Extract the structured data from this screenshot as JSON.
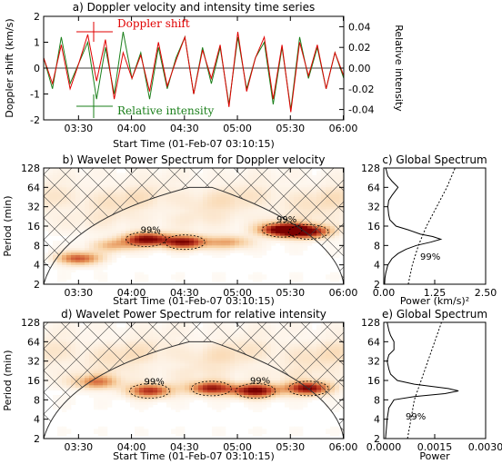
{
  "start_note": "Start Time (01-Feb-07 03:10:15)",
  "x_ticks": [
    "03:30",
    "04:00",
    "04:30",
    "05:00",
    "05:30",
    "06:00"
  ],
  "colors": {
    "doppler": "#e00000",
    "intensity": "#1a7f1a",
    "wavelet_low": "#fbe7d2",
    "wavelet_high": "#7a0000"
  },
  "chart_data": [
    {
      "type": "line",
      "title": "a) Doppler velocity and intensity time series",
      "xlabel": "Start Time (01-Feb-07 03:10:15)",
      "ylabel": "Doppler shift (km/s)",
      "y2label": "Relative intensity",
      "ylim": [
        -2,
        2
      ],
      "y2lim": [
        -0.05,
        0.05
      ],
      "yticks": [
        "-2",
        "-1",
        "0",
        "1",
        "2"
      ],
      "y2ticks": [
        "-0.04",
        "-0.02",
        "0.00",
        "0.02",
        "0.04"
      ],
      "x_range_minutes": [
        0,
        170
      ],
      "legend": [
        "Doppler shift",
        "Relative intensity"
      ],
      "series": [
        {
          "name": "Doppler shift",
          "color": "#e00000",
          "x": [
            0,
            5,
            10,
            15,
            20,
            25,
            30,
            35,
            40,
            45,
            50,
            55,
            60,
            65,
            70,
            75,
            80,
            85,
            90,
            95,
            100,
            105,
            110,
            115,
            120,
            125,
            130,
            135,
            140,
            145,
            150,
            155,
            160,
            165,
            170
          ],
          "values": [
            0.4,
            -0.6,
            0.9,
            -0.8,
            0.2,
            1.3,
            -0.5,
            1.1,
            -1.2,
            0.6,
            -0.4,
            0.5,
            -0.9,
            1.0,
            -0.7,
            0.3,
            1.2,
            -1.0,
            0.7,
            -0.4,
            0.9,
            -1.5,
            1.4,
            -0.9,
            0.4,
            1.2,
            -1.2,
            0.9,
            -1.7,
            1.0,
            -0.3,
            0.9,
            -0.8,
            0.6,
            -0.3
          ]
        },
        {
          "name": "Relative intensity",
          "color": "#1a7f1a",
          "x": [
            0,
            5,
            10,
            15,
            20,
            25,
            30,
            35,
            40,
            45,
            50,
            55,
            60,
            65,
            70,
            75,
            80,
            85,
            90,
            95,
            100,
            105,
            110,
            115,
            120,
            125,
            130,
            135,
            140,
            145,
            150,
            155,
            160,
            165,
            170
          ],
          "values": [
            0.01,
            -0.02,
            0.03,
            -0.015,
            0.005,
            0.025,
            -0.03,
            0.02,
            -0.025,
            0.035,
            -0.01,
            0.015,
            -0.03,
            0.02,
            -0.02,
            0.01,
            0.03,
            -0.025,
            0.02,
            -0.015,
            0.02,
            -0.035,
            0.03,
            -0.02,
            0.01,
            0.025,
            -0.035,
            0.02,
            -0.04,
            0.03,
            -0.01,
            0.02,
            -0.02,
            0.015,
            -0.01
          ]
        }
      ]
    },
    {
      "type": "heatmap",
      "title": "b) Wavelet Power Spectrum for Doppler velocity",
      "xlabel": "Start Time (01-Feb-07 03:10:15)",
      "ylabel": "Period (min)",
      "yticks": [
        "2",
        "4",
        "8",
        "16",
        "32",
        "64",
        "128"
      ],
      "y_scale": "log2",
      "contour_label": "99%",
      "blobs": [
        {
          "t": 58,
          "p": 10,
          "peak": 0.95
        },
        {
          "t": 80,
          "p": 9,
          "peak": 0.9
        },
        {
          "t": 135,
          "p": 14,
          "peak": 1.0
        },
        {
          "t": 150,
          "p": 13,
          "peak": 0.9
        },
        {
          "t": 20,
          "p": 5,
          "peak": 0.7
        },
        {
          "t": 105,
          "p": 9,
          "peak": 0.45
        },
        {
          "t": 40,
          "p": 8,
          "peak": 0.4
        }
      ]
    },
    {
      "type": "line",
      "title": "c) Global Spectrum",
      "xlabel": "Power (km/s)²",
      "xticks": [
        "0.00",
        "1.25",
        "2.50"
      ],
      "xlim": [
        0,
        2.5
      ],
      "yticks": [
        "2",
        "4",
        "8",
        "16",
        "32",
        "64",
        "128"
      ],
      "significance_label": "99%",
      "series": [
        {
          "name": "global",
          "period": [
            2,
            2.5,
            3,
            4,
            5,
            6,
            7,
            8,
            9,
            10,
            11,
            12,
            14,
            16,
            20,
            24,
            32,
            40,
            48,
            64,
            80,
            96,
            128
          ],
          "power": [
            0.02,
            0.03,
            0.05,
            0.1,
            0.2,
            0.35,
            0.55,
            0.8,
            1.15,
            1.4,
            1.2,
            0.9,
            0.6,
            0.3,
            0.15,
            0.12,
            0.1,
            0.12,
            0.2,
            0.35,
            0.2,
            0.1,
            0.05
          ]
        },
        {
          "name": "significance",
          "period": [
            2,
            4,
            8,
            16,
            32,
            64,
            128
          ],
          "power": [
            0.6,
            0.7,
            0.85,
            1.05,
            1.3,
            1.55,
            1.75
          ]
        }
      ]
    },
    {
      "type": "heatmap",
      "title": "d) Wavelet Power Spectrum for relative intensity",
      "xlabel": "Start Time (01-Feb-07 03:10:15)",
      "ylabel": "Period (min)",
      "yticks": [
        "2",
        "4",
        "8",
        "16",
        "32",
        "64",
        "128"
      ],
      "y_scale": "log2",
      "contour_label": "99%",
      "blobs": [
        {
          "t": 60,
          "p": 11,
          "peak": 0.8
        },
        {
          "t": 95,
          "p": 12,
          "peak": 0.85
        },
        {
          "t": 120,
          "p": 11,
          "peak": 1.0
        },
        {
          "t": 150,
          "p": 12,
          "peak": 0.95
        },
        {
          "t": 30,
          "p": 15,
          "peak": 0.5
        }
      ]
    },
    {
      "type": "line",
      "title": "e) Global Spectrum",
      "xlabel": "Power",
      "xticks": [
        "0.0000",
        "0.0015",
        "0.0030"
      ],
      "xlim": [
        0,
        0.003
      ],
      "yticks": [
        "2",
        "4",
        "8",
        "16",
        "32",
        "64",
        "128"
      ],
      "significance_label": "99%",
      "series": [
        {
          "name": "global",
          "period": [
            2,
            3,
            4,
            6,
            8,
            9,
            10,
            11,
            12,
            14,
            16,
            20,
            24,
            32,
            40,
            48,
            64,
            80,
            96,
            128
          ],
          "power": [
            5e-05,
            8e-05,
            0.0001,
            0.00015,
            0.0003,
            0.0009,
            0.0018,
            0.0022,
            0.0019,
            0.0009,
            0.0004,
            0.0002,
            0.00015,
            0.0001,
            0.00015,
            0.0003,
            0.0003,
            0.0002,
            0.00015,
            0.0001
          ]
        },
        {
          "name": "significance",
          "period": [
            2,
            4,
            8,
            16,
            32,
            64,
            128
          ],
          "power": [
            0.0007,
            0.0008,
            0.0009,
            0.0011,
            0.0013,
            0.0015,
            0.0017
          ]
        }
      ]
    }
  ]
}
